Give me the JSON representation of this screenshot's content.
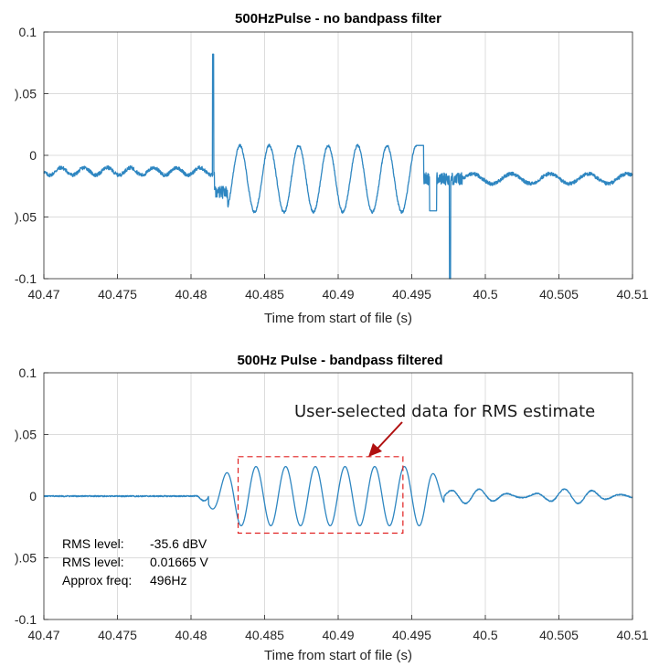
{
  "chart_data": [
    {
      "type": "line",
      "title": "500HzPulse - no bandpass filter",
      "xlabel": "Time from start of file (s)",
      "ylabel": "",
      "xlim": [
        40.47,
        40.51
      ],
      "ylim": [
        -0.1,
        0.1
      ],
      "grid": true,
      "xticks": [
        "40.47",
        "40.475",
        "40.48",
        "40.485",
        "40.49",
        "40.495",
        "40.5",
        "40.505",
        "40.51"
      ],
      "yticks": [
        "0.1",
        "0.05",
        "0",
        "-0.05",
        "-0.1"
      ],
      "yticks_display": [
        "0.1",
        ").05",
        "0",
        ").05",
        "-0.1"
      ],
      "line_color": "#2e86c1",
      "signal": {
        "noise_before": {
          "x_start": 40.47,
          "x_end": 40.4816,
          "level": -0.013
        },
        "spike_up": {
          "x": 40.4815,
          "y": 0.082
        },
        "pulse": {
          "x_start": 40.4825,
          "x_end": 40.4955,
          "freq_hz": 500,
          "center": -0.019,
          "amplitude": 0.027
        },
        "spike_down": {
          "x": 40.4976,
          "y": -0.1
        },
        "noise_after": {
          "x_start": 40.4985,
          "x_end": 40.51,
          "level": -0.019
        }
      }
    },
    {
      "type": "line",
      "title": "500Hz Pulse - bandpass filtered",
      "xlabel": "Time from start of file (s)",
      "ylabel": "",
      "xlim": [
        40.47,
        40.51
      ],
      "ylim": [
        -0.1,
        0.1
      ],
      "grid": true,
      "xticks": [
        "40.47",
        "40.475",
        "40.48",
        "40.485",
        "40.49",
        "40.495",
        "40.5",
        "40.505",
        "40.51"
      ],
      "yticks": [
        "0.1",
        "0.05",
        "0",
        "-0.05",
        "-0.1"
      ],
      "yticks_display": [
        "0.1",
        ").05",
        "0",
        ").05",
        "-0.1"
      ],
      "line_color": "#2e86c1",
      "signal": {
        "pulse": {
          "x_start": 40.4812,
          "x_end": 40.4972,
          "freq_hz": 496,
          "amplitude": 0.024
        },
        "residual_after": {
          "x_start": 40.4972,
          "x_end": 40.51,
          "amplitude": 0.006
        }
      },
      "selection": {
        "x_start": 40.4832,
        "x_end": 40.4944,
        "y_min": -0.03,
        "y_max": 0.032,
        "color": "#e02020"
      },
      "annotation": {
        "text": "User-selected data for RMS estimate",
        "arrow_color": "#b01010"
      },
      "stats": [
        {
          "label": "RMS level:",
          "value": "-35.6 dBV"
        },
        {
          "label": "RMS level:",
          "value": "0.01665 V"
        },
        {
          "label": "Approx freq:",
          "value": "496Hz"
        }
      ]
    }
  ]
}
